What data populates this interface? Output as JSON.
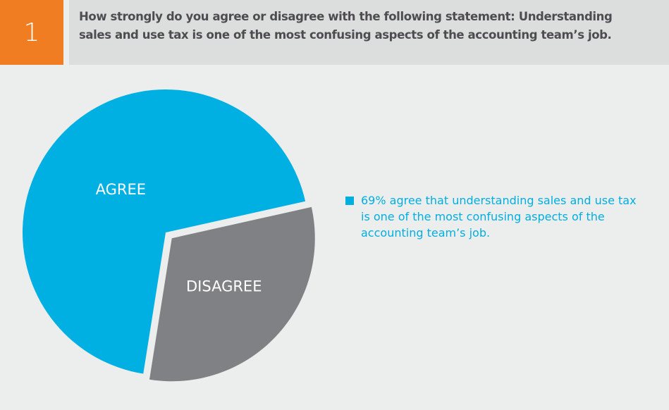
{
  "header": {
    "number": "1",
    "title": "How strongly do you agree or disagree with the following statement: Understanding sales and use tax is one of the most confusing aspects of the accounting team’s job."
  },
  "chart_data": {
    "type": "pie",
    "categories": [
      "AGREE",
      "DISAGREE"
    ],
    "values": [
      69,
      31
    ],
    "colors": [
      "#00b0e3",
      "#808184"
    ]
  },
  "note": "69% agree that understanding sales and use tax is one of the most confusing aspects of the accounting team’s job."
}
